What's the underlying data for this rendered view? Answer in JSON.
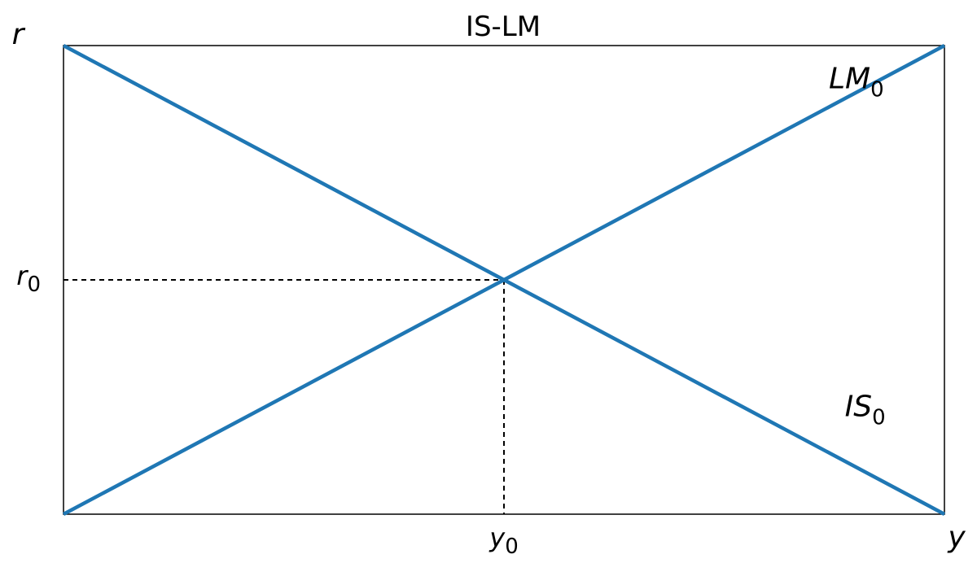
{
  "chart_data": {
    "type": "line",
    "title": "IS-LM",
    "xlabel": "y",
    "ylabel": "r",
    "xlim": [
      0,
      1
    ],
    "ylim": [
      0,
      1
    ],
    "grid": false,
    "legend": "none",
    "series": [
      {
        "name": "IS",
        "subscript": "0",
        "color": "#1f77b4",
        "x": [
          0,
          1
        ],
        "y": [
          1,
          0
        ]
      },
      {
        "name": "LM",
        "subscript": "0",
        "color": "#1f77b4",
        "x": [
          0,
          1
        ],
        "y": [
          0,
          1
        ]
      }
    ],
    "equilibrium": {
      "x": 0.5,
      "y": 0.5
    },
    "ticks": {
      "x": {
        "value": 0.5,
        "label": "y",
        "subscript": "0"
      },
      "y": {
        "value": 0.5,
        "label": "r",
        "subscript": "0"
      }
    },
    "curve_labels": [
      {
        "series": "LM",
        "text": "LM",
        "subscript": "0",
        "x": 0.9,
        "y": 0.93
      },
      {
        "series": "IS",
        "text": "IS",
        "subscript": "0",
        "x": 0.91,
        "y": 0.23
      }
    ]
  }
}
